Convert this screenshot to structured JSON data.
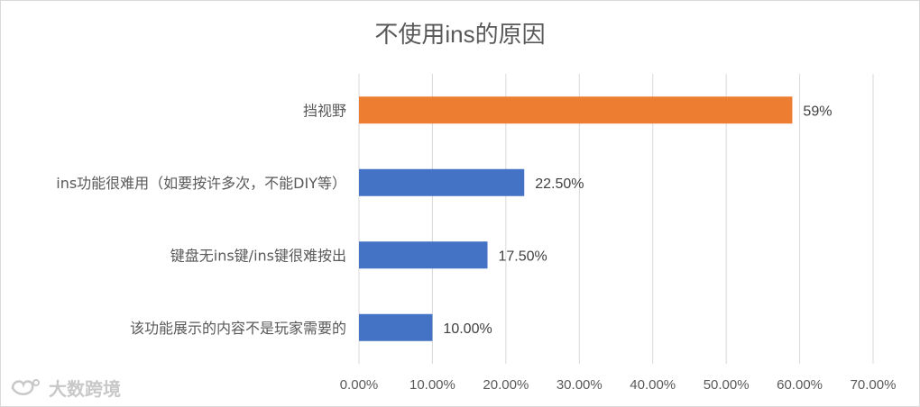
{
  "title": "不使用ins的原因",
  "watermark": {
    "text": "大数跨境"
  },
  "chart_data": {
    "type": "bar",
    "orientation": "horizontal",
    "title": "不使用ins的原因",
    "categories": [
      "挡视野",
      "ins功能很难用（如要按许多次，不能DIY等）",
      "键盘无ins键/ins键很难按出",
      "该功能展示的内容不是玩家需要的"
    ],
    "values": [
      59,
      22.5,
      17.5,
      10
    ],
    "data_labels": [
      "59%",
      "22.50%",
      "17.50%",
      "10.00%"
    ],
    "colors": [
      "#ed7d31",
      "#4472c4",
      "#4472c4",
      "#4472c4"
    ],
    "xlim": [
      0,
      70
    ],
    "x_ticks": [
      0,
      10,
      20,
      30,
      40,
      50,
      60,
      70
    ],
    "x_tick_labels": [
      "0.00%",
      "10.00%",
      "20.00%",
      "30.00%",
      "40.00%",
      "50.00%",
      "60.00%",
      "70.00%"
    ],
    "grid": true,
    "legend": "none"
  }
}
